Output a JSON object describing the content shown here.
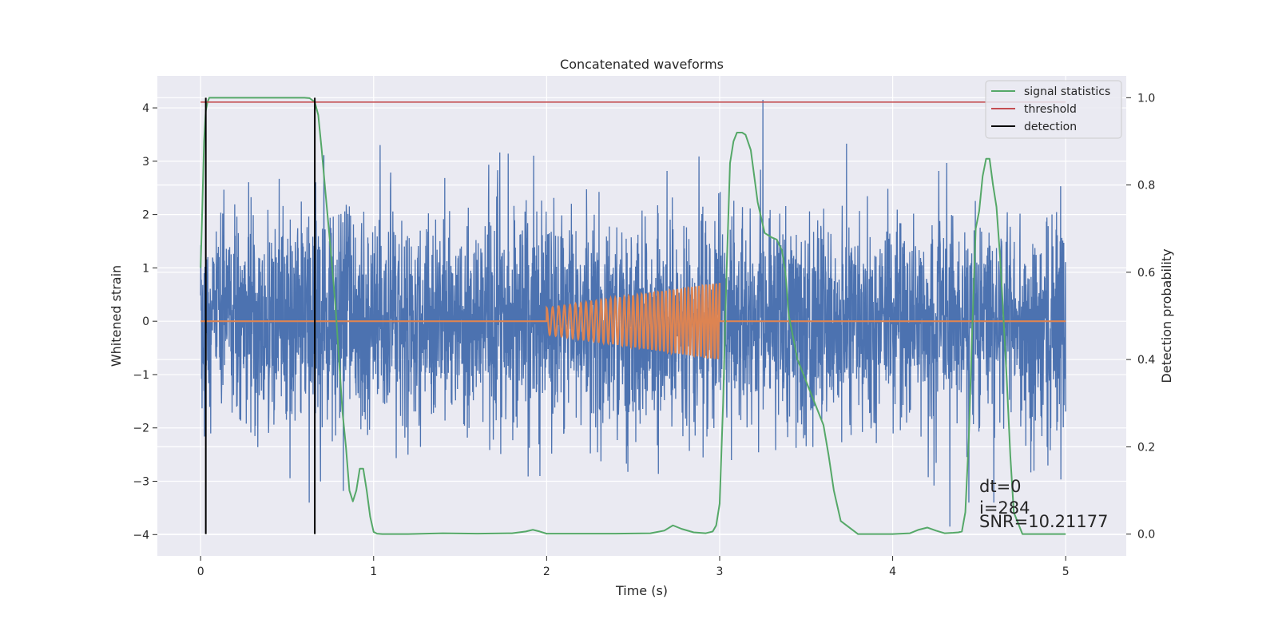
{
  "chart_data": {
    "type": "line",
    "title": "Concatenated waveforms",
    "xlabel": "Time (s)",
    "ylabel": "Whitened strain",
    "y2label": "Detection probability",
    "xlim": [
      -0.25,
      5.35
    ],
    "ylim": [
      -4.4,
      4.6
    ],
    "y2lim": [
      -0.05,
      1.05
    ],
    "x_ticks": [
      0,
      1,
      2,
      3,
      4,
      5
    ],
    "y_ticks": [
      -4,
      -3,
      -2,
      -1,
      0,
      1,
      2,
      3,
      4
    ],
    "y2_ticks": [
      0.0,
      0.2,
      0.4,
      0.6,
      0.8,
      1.0
    ],
    "x_tick_labels": [
      "0",
      "1",
      "2",
      "3",
      "4",
      "5"
    ],
    "y_tick_labels": [
      "−4",
      "−3",
      "−2",
      "−1",
      "0",
      "1",
      "2",
      "3",
      "4"
    ],
    "y2_tick_labels": [
      "0.0",
      "0.2",
      "0.4",
      "0.6",
      "0.8",
      "1.0"
    ],
    "grid": true,
    "legend_position": "top-right",
    "colors": {
      "strain": "#4c72b0",
      "injection": "#dd8452",
      "signal_statistics": "#55a868",
      "threshold": "#c44e52",
      "detection": "#000000",
      "axes_bg": "#eaeaf2",
      "grid": "#ffffff"
    },
    "strain_noise": {
      "x_range": [
        0,
        5
      ],
      "typical_amplitude": 1.0,
      "max_value": 4.15,
      "max_at_x": 3.25,
      "min_value": -3.85,
      "min_at_x": 4.33
    },
    "injection": {
      "x_start": 2.0,
      "x_end": 3.0,
      "amplitude_start": 0.25,
      "amplitude_end": 0.72,
      "cycles": 40
    },
    "series": [
      {
        "name": "signal statistics",
        "axis": "right",
        "x": [
          0.0,
          0.01,
          0.02,
          0.03,
          0.04,
          0.05,
          0.08,
          0.12,
          0.2,
          0.3,
          0.4,
          0.5,
          0.6,
          0.63,
          0.66,
          0.68,
          0.7,
          0.72,
          0.75,
          0.78,
          0.8,
          0.82,
          0.84,
          0.86,
          0.88,
          0.9,
          0.92,
          0.94,
          0.96,
          0.98,
          1.0,
          1.02,
          1.05,
          1.2,
          1.4,
          1.6,
          1.8,
          1.88,
          1.92,
          1.96,
          2.0,
          2.2,
          2.4,
          2.6,
          2.68,
          2.73,
          2.78,
          2.85,
          2.92,
          2.96,
          2.98,
          3.0,
          3.02,
          3.04,
          3.06,
          3.08,
          3.1,
          3.13,
          3.15,
          3.18,
          3.22,
          3.26,
          3.3,
          3.33,
          3.36,
          3.38,
          3.4,
          3.45,
          3.5,
          3.55,
          3.6,
          3.63,
          3.66,
          3.7,
          3.8,
          4.0,
          4.1,
          4.15,
          4.2,
          4.25,
          4.3,
          4.35,
          4.38,
          4.4,
          4.42,
          4.44,
          4.46,
          4.48,
          4.5,
          4.52,
          4.54,
          4.56,
          4.58,
          4.6,
          4.62,
          4.64,
          4.66,
          4.68,
          4.7,
          4.75,
          4.85,
          5.0
        ],
        "values": [
          0.61,
          0.75,
          0.9,
          0.97,
          0.99,
          1.0,
          1.0,
          1.0,
          1.0,
          1.0,
          1.0,
          1.0,
          1.0,
          0.999,
          0.99,
          0.96,
          0.88,
          0.79,
          0.66,
          0.52,
          0.4,
          0.28,
          0.2,
          0.1,
          0.075,
          0.1,
          0.15,
          0.15,
          0.1,
          0.04,
          0.005,
          0.001,
          0.0,
          0.0,
          0.002,
          0.001,
          0.002,
          0.006,
          0.01,
          0.006,
          0.001,
          0.001,
          0.001,
          0.002,
          0.008,
          0.02,
          0.012,
          0.004,
          0.002,
          0.006,
          0.02,
          0.07,
          0.3,
          0.6,
          0.85,
          0.9,
          0.92,
          0.92,
          0.915,
          0.88,
          0.76,
          0.69,
          0.68,
          0.675,
          0.65,
          0.6,
          0.5,
          0.4,
          0.35,
          0.3,
          0.25,
          0.18,
          0.1,
          0.03,
          0.0,
          0.0,
          0.002,
          0.01,
          0.015,
          0.008,
          0.002,
          0.003,
          0.004,
          0.006,
          0.05,
          0.22,
          0.47,
          0.7,
          0.74,
          0.82,
          0.86,
          0.86,
          0.8,
          0.75,
          0.64,
          0.5,
          0.35,
          0.18,
          0.05,
          0.0,
          0.0,
          0.0
        ]
      },
      {
        "name": "threshold",
        "axis": "right",
        "x": [
          0.0,
          5.0
        ],
        "values": [
          0.99,
          0.99
        ]
      },
      {
        "name": "detection",
        "axis": "right",
        "vlines": [
          0.03,
          0.66
        ],
        "from": 0.0,
        "to": 1.0
      }
    ],
    "annotations": [
      "dt=0",
      "i=284",
      "SNR=10.21177"
    ]
  }
}
